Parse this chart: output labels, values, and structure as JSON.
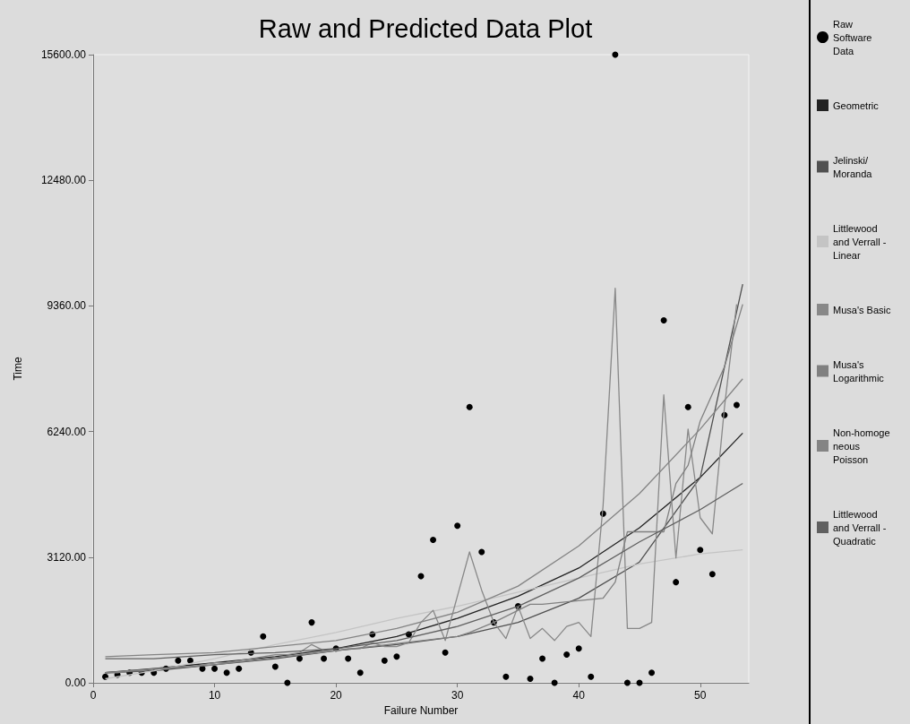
{
  "chart_data": {
    "type": "line",
    "title": "Raw and Predicted Data Plot",
    "xlabel": "Failure Number",
    "ylabel": "Time",
    "xlim": [
      0,
      54
    ],
    "xticks": [
      0,
      10,
      20,
      30,
      40,
      50
    ],
    "ylim": [
      0,
      15600
    ],
    "yticks": [
      {
        "value": 0,
        "label": "0.00"
      },
      {
        "value": 3120,
        "label": "3120.00"
      },
      {
        "value": 6240,
        "label": "6240.00"
      },
      {
        "value": 9360,
        "label": "9360.00"
      },
      {
        "value": 12480,
        "label": "12480.00"
      },
      {
        "value": 15600,
        "label": "15600.00"
      }
    ],
    "grid": false,
    "legend": "right",
    "line_style": "solid",
    "series": [
      {
        "name": "Raw Software Data",
        "type": "scatter",
        "marker": "circle",
        "color": "#000000",
        "x": [
          1,
          2,
          3,
          4,
          5,
          6,
          7,
          8,
          9,
          10,
          11,
          12,
          13,
          14,
          15,
          16,
          17,
          18,
          19,
          20,
          21,
          22,
          23,
          24,
          25,
          26,
          27,
          28,
          29,
          30,
          31,
          32,
          33,
          34,
          35,
          36,
          37,
          38,
          39,
          40,
          41,
          42,
          43,
          44,
          45,
          46,
          47,
          48,
          49,
          50,
          51,
          52,
          53
        ],
        "values": [
          150,
          200,
          250,
          250,
          250,
          350,
          550,
          550,
          350,
          350,
          250,
          350,
          750,
          1150,
          400,
          0,
          600,
          1500,
          600,
          850,
          600,
          250,
          1200,
          550,
          650,
          1200,
          2650,
          3550,
          750,
          3900,
          6850,
          3250,
          1500,
          150,
          1900,
          100,
          600,
          0,
          700,
          850,
          150,
          4200,
          15600,
          0,
          0,
          250,
          9000,
          2500,
          6850,
          3300,
          2700,
          6650,
          6900
        ]
      },
      {
        "name": "Geometric",
        "marker": "none",
        "color": "#222222",
        "x": [
          1,
          5,
          10,
          15,
          20,
          25,
          30,
          35,
          40,
          45,
          50,
          53.5
        ],
        "values": [
          250,
          350,
          500,
          650,
          850,
          1150,
          1600,
          2150,
          2850,
          3850,
          5100,
          6200
        ]
      },
      {
        "name": "Jelinski/Moranda",
        "marker": "none",
        "color": "#505050",
        "x": [
          1,
          5,
          10,
          15,
          20,
          25,
          30,
          35,
          40,
          45,
          50,
          53.5
        ],
        "values": [
          250,
          300,
          450,
          600,
          800,
          950,
          1150,
          1500,
          2100,
          3000,
          5100,
          9900
        ]
      },
      {
        "name": "Littlewood and Verrall - Linear",
        "marker": "none",
        "color": "#c4c4c4",
        "x": [
          1,
          5,
          10,
          15,
          20,
          25,
          30,
          35,
          40,
          45,
          50,
          53.5
        ],
        "values": [
          100,
          300,
          600,
          950,
          1250,
          1600,
          1900,
          2250,
          2600,
          2950,
          3200,
          3300
        ]
      },
      {
        "name": "Musa's Basic",
        "marker": "none",
        "color": "#888888",
        "x": [
          1,
          2,
          3,
          4,
          5,
          6,
          7,
          8,
          9,
          10,
          11,
          12,
          13,
          14,
          15,
          16,
          17,
          18,
          19,
          20,
          21,
          22,
          23,
          24,
          25,
          26,
          27,
          28,
          29,
          30,
          31,
          32,
          33,
          34,
          35,
          36,
          37,
          38,
          39,
          40,
          41,
          42,
          43,
          44,
          45,
          46,
          47,
          48,
          49,
          50,
          51,
          52,
          53
        ],
        "values": [
          250,
          250,
          300,
          300,
          350,
          350,
          400,
          400,
          450,
          500,
          500,
          550,
          600,
          650,
          700,
          700,
          750,
          950,
          800,
          800,
          850,
          850,
          1000,
          900,
          900,
          1000,
          1500,
          1800,
          1050,
          2150,
          3250,
          2300,
          1500,
          1100,
          1900,
          1100,
          1350,
          1050,
          1400,
          1500,
          1150,
          4400,
          9800,
          1350,
          1350,
          1500,
          7150,
          3100,
          6300,
          4100,
          3700,
          6850,
          9400
        ]
      },
      {
        "name": "Musa's Logarithmic",
        "marker": "none",
        "color": "#808080",
        "x": [
          1,
          10,
          20,
          30,
          31,
          33,
          35,
          36,
          37,
          42,
          43,
          44,
          47,
          48,
          49,
          50,
          52,
          53.5
        ],
        "values": [
          250,
          450,
          800,
          1150,
          1250,
          1500,
          1800,
          1950,
          1950,
          2100,
          2500,
          3750,
          3750,
          4950,
          5400,
          6500,
          7850,
          9400
        ]
      },
      {
        "name": "Non-homogeneous Poisson",
        "marker": "none",
        "color": "#848484",
        "x": [
          1,
          5,
          10,
          15,
          20,
          25,
          30,
          35,
          40,
          45,
          50,
          53.5
        ],
        "values": [
          650,
          700,
          750,
          900,
          1050,
          1350,
          1750,
          2400,
          3400,
          4700,
          6300,
          7550
        ]
      },
      {
        "name": "Littlewood and Verrall - Quadratic",
        "marker": "none",
        "color": "#606060",
        "x": [
          1,
          5,
          10,
          15,
          20,
          25,
          30,
          35,
          40,
          45,
          50,
          53.5
        ],
        "values": [
          600,
          600,
          700,
          750,
          850,
          1050,
          1400,
          1900,
          2600,
          3500,
          4300,
          4950
        ]
      }
    ]
  }
}
